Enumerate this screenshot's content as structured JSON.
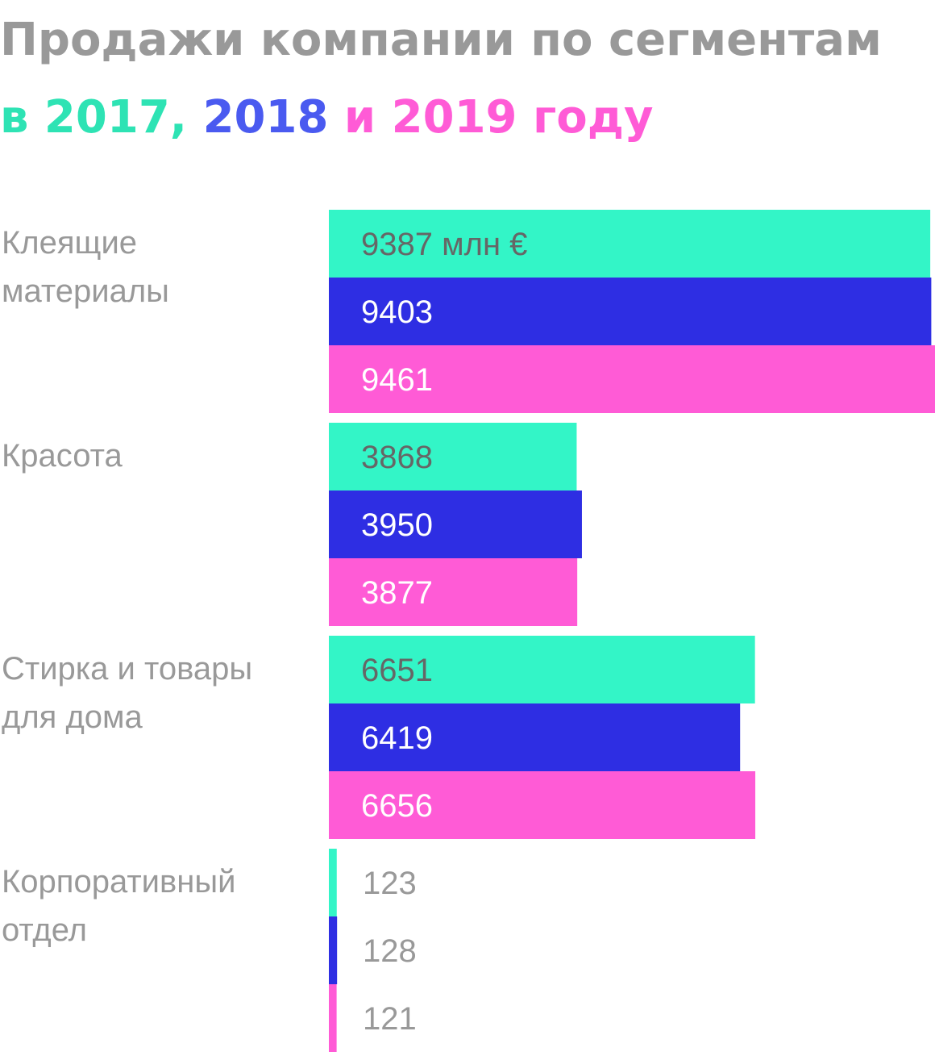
{
  "title": {
    "line1": "Продажи компании по сегментам",
    "line2_parts": [
      {
        "text": "в 2017, ",
        "color": "#2ee3b4"
      },
      {
        "text": "2018",
        "color": "#4a5af0"
      },
      {
        "text": " и 2019 году",
        "color": "#ff5bd6"
      }
    ]
  },
  "colors": {
    "2017": "#33f5c7",
    "2018": "#2e2ee3",
    "2019": "#ff5bd6",
    "category_text": "#999999",
    "value_text_on_2017": "#666666",
    "value_text_on_dark": "#ffffff",
    "value_text_outside": "#999999"
  },
  "chart_data": {
    "type": "bar",
    "orientation": "horizontal",
    "unit": "млн €",
    "categories": [
      [
        "Клеящие",
        "материалы"
      ],
      [
        "Красота"
      ],
      [
        "Стирка и товары",
        "для дома"
      ],
      [
        "Корпоративный",
        "отдел"
      ]
    ],
    "series": [
      {
        "name": "2017",
        "values": [
          9387,
          3868,
          6651,
          123
        ]
      },
      {
        "name": "2018",
        "values": [
          9403,
          3950,
          6419,
          128
        ]
      },
      {
        "name": "2019",
        "values": [
          9461,
          3877,
          6656,
          121
        ]
      }
    ],
    "value_labels": [
      [
        "9387 млн €",
        "9403",
        "9461"
      ],
      [
        "3868",
        "3950",
        "3877"
      ],
      [
        "6651",
        "6419",
        "6656"
      ],
      [
        "123",
        "128",
        "121"
      ]
    ],
    "grid": false,
    "legend": "in title"
  }
}
